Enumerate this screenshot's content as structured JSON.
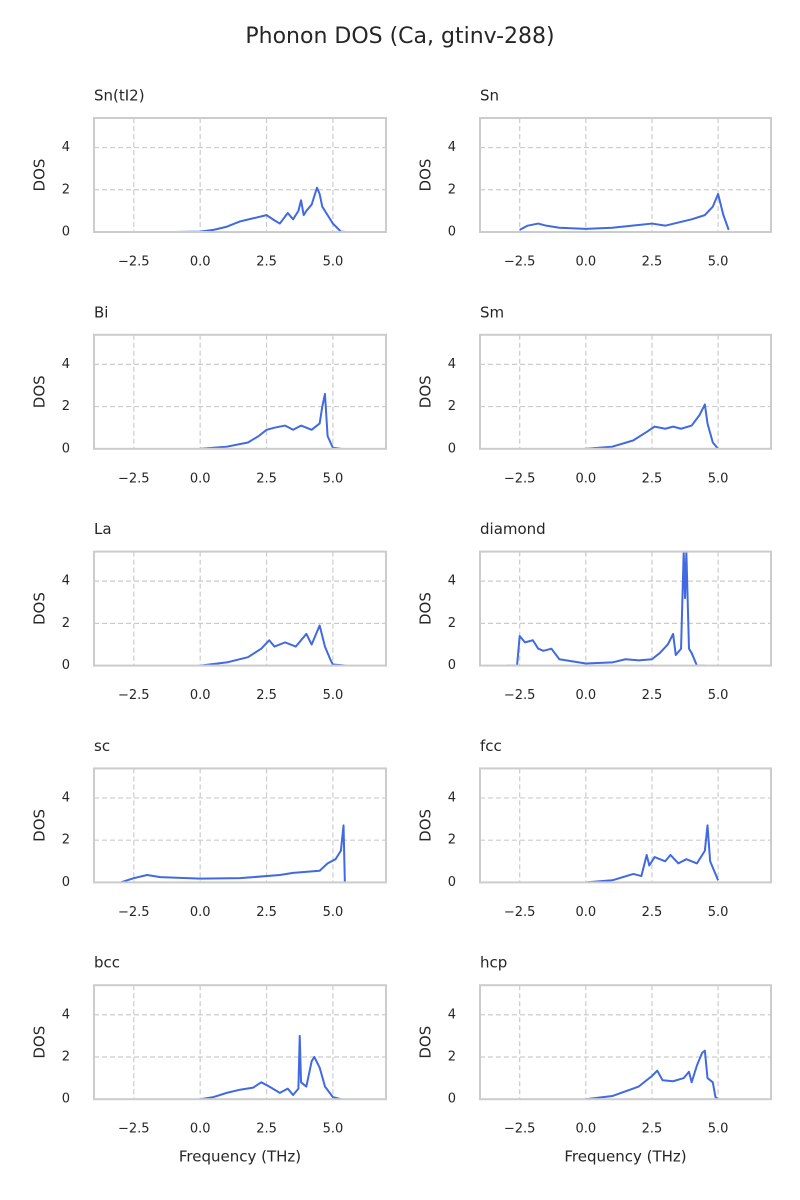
{
  "title": "Phonon DOS (Ca, gtinv-288)",
  "chart_data": [
    {
      "type": "line",
      "title": "Sn(tI2)",
      "ylabel": "DOS",
      "color": "#4169e1",
      "grid": true,
      "xlim": [
        -4.0,
        7.0
      ],
      "ylim": [
        0,
        5.4
      ],
      "xticks": [
        {
          "value": -2.5,
          "label": "−2.5"
        },
        {
          "value": 0,
          "label": "0.0"
        },
        2.5,
        {
          "value": 5,
          "label": "5.0"
        }
      ],
      "yticks": [
        0,
        2,
        4
      ],
      "x": [
        -1,
        0,
        0.5,
        1,
        1.5,
        2,
        2.5,
        2.8,
        3.0,
        3.3,
        3.5,
        3.7,
        3.8,
        3.9,
        4.0,
        4.2,
        4.4,
        4.5,
        4.6,
        4.8,
        5.0,
        5.3,
        5.5
      ],
      "values": [
        0,
        0.02,
        0.1,
        0.25,
        0.5,
        0.65,
        0.8,
        0.55,
        0.4,
        0.9,
        0.6,
        1.0,
        1.5,
        0.8,
        1.0,
        1.3,
        2.1,
        1.8,
        1.2,
        0.8,
        0.4,
        0.02,
        0
      ]
    },
    {
      "type": "line",
      "title": "Sn",
      "ylabel": "DOS",
      "color": "#4169e1",
      "grid": true,
      "xlim": [
        -4.0,
        7.0
      ],
      "ylim": [
        0,
        5.4
      ],
      "xticks": [
        {
          "value": -2.5,
          "label": "−2.5"
        },
        {
          "value": 0,
          "label": "0.0"
        },
        2.5,
        {
          "value": 5,
          "label": "5.0"
        }
      ],
      "yticks": [
        0,
        2,
        4
      ],
      "x": [
        -2.5,
        -2.2,
        -1.8,
        -1.5,
        -1,
        0,
        1,
        2.5,
        3,
        4,
        4.5,
        4.8,
        5.0,
        5.2,
        5.4
      ],
      "values": [
        0.1,
        0.3,
        0.4,
        0.3,
        0.2,
        0.15,
        0.2,
        0.4,
        0.3,
        0.6,
        0.8,
        1.2,
        1.8,
        0.8,
        0.1
      ]
    },
    {
      "type": "line",
      "title": "Bi",
      "ylabel": "DOS",
      "color": "#4169e1",
      "grid": true,
      "xlim": [
        -4.0,
        7.0
      ],
      "ylim": [
        0,
        5.4
      ],
      "xticks": [
        {
          "value": -2.5,
          "label": "−2.5"
        },
        {
          "value": 0,
          "label": "0.0"
        },
        2.5,
        {
          "value": 5,
          "label": "5.0"
        }
      ],
      "yticks": [
        0,
        2,
        4
      ],
      "x": [
        0,
        1,
        1.8,
        2.2,
        2.5,
        2.8,
        3.2,
        3.5,
        3.8,
        4.2,
        4.5,
        4.6,
        4.7,
        4.8,
        5,
        5.3
      ],
      "values": [
        0,
        0.1,
        0.3,
        0.6,
        0.9,
        1.0,
        1.1,
        0.9,
        1.1,
        0.9,
        1.2,
        2.0,
        2.6,
        0.6,
        0.05,
        0
      ]
    },
    {
      "type": "line",
      "title": "Sm",
      "ylabel": "DOS",
      "color": "#4169e1",
      "grid": true,
      "xlim": [
        -4.0,
        7.0
      ],
      "ylim": [
        0,
        5.4
      ],
      "xticks": [
        {
          "value": -2.5,
          "label": "−2.5"
        },
        {
          "value": 0,
          "label": "0.0"
        },
        2.5,
        {
          "value": 5,
          "label": "5.0"
        }
      ],
      "yticks": [
        0,
        2,
        4
      ],
      "x": [
        0,
        1,
        1.8,
        2.3,
        2.6,
        3.0,
        3.3,
        3.6,
        4.0,
        4.3,
        4.5,
        4.6,
        4.8,
        5
      ],
      "values": [
        0,
        0.1,
        0.4,
        0.8,
        1.05,
        0.95,
        1.05,
        0.95,
        1.1,
        1.6,
        2.1,
        1.2,
        0.3,
        0
      ]
    },
    {
      "type": "line",
      "title": "La",
      "ylabel": "DOS",
      "color": "#4169e1",
      "grid": true,
      "xlim": [
        -4.0,
        7.0
      ],
      "ylim": [
        0,
        5.4
      ],
      "xticks": [
        {
          "value": -2.5,
          "label": "−2.5"
        },
        {
          "value": 0,
          "label": "0.0"
        },
        2.5,
        {
          "value": 5,
          "label": "5.0"
        }
      ],
      "yticks": [
        0,
        2,
        4
      ],
      "x": [
        0,
        1,
        1.8,
        2.3,
        2.6,
        2.8,
        3.2,
        3.6,
        4.0,
        4.2,
        4.5,
        4.7,
        4.9,
        5.0,
        5.5
      ],
      "values": [
        0,
        0.15,
        0.4,
        0.8,
        1.2,
        0.9,
        1.1,
        0.9,
        1.5,
        1.0,
        1.9,
        0.9,
        0.3,
        0.05,
        0
      ]
    },
    {
      "type": "line",
      "title": "diamond",
      "ylabel": "DOS",
      "color": "#4169e1",
      "grid": true,
      "xlim": [
        -4.0,
        7.0
      ],
      "ylim": [
        0,
        5.4
      ],
      "xticks": [
        {
          "value": -2.5,
          "label": "−2.5"
        },
        {
          "value": 0,
          "label": "0.0"
        },
        2.5,
        {
          "value": 5,
          "label": "5.0"
        }
      ],
      "yticks": [
        0,
        2,
        4
      ],
      "x": [
        -3,
        -2.6,
        -2.5,
        -2.3,
        -2,
        -1.8,
        -1.6,
        -1.3,
        -1,
        -0.5,
        0,
        1,
        1.5,
        2,
        2.5,
        2.8,
        3.1,
        3.3,
        3.4,
        3.6,
        3.7,
        3.75,
        3.8,
        3.9,
        4.0,
        4.2,
        4.5
      ],
      "values": [
        0,
        0,
        1.4,
        1.1,
        1.2,
        0.8,
        0.7,
        0.8,
        0.3,
        0.2,
        0.1,
        0.15,
        0.3,
        0.25,
        0.3,
        0.6,
        1.0,
        1.5,
        0.5,
        0.8,
        5.4,
        3.2,
        5.4,
        0.8,
        0.6,
        0,
        0
      ]
    },
    {
      "type": "line",
      "title": "sc",
      "ylabel": "DOS",
      "color": "#4169e1",
      "grid": true,
      "xlim": [
        -4.0,
        7.0
      ],
      "ylim": [
        0,
        5.4
      ],
      "xticks": [
        {
          "value": -2.5,
          "label": "−2.5"
        },
        {
          "value": 0,
          "label": "0.0"
        },
        2.5,
        {
          "value": 5,
          "label": "5.0"
        }
      ],
      "yticks": [
        0,
        2,
        4
      ],
      "x": [
        -3,
        -2.5,
        -2,
        -1.5,
        0,
        1.5,
        2,
        3,
        3.5,
        4.5,
        4.8,
        5.1,
        5.3,
        5.4,
        5.45
      ],
      "values": [
        0,
        0.2,
        0.35,
        0.25,
        0.18,
        0.2,
        0.25,
        0.35,
        0.45,
        0.55,
        0.9,
        1.1,
        1.5,
        2.7,
        0
      ]
    },
    {
      "type": "line",
      "title": "fcc",
      "ylabel": "DOS",
      "color": "#4169e1",
      "grid": true,
      "xlim": [
        -4.0,
        7.0
      ],
      "ylim": [
        0,
        5.4
      ],
      "xticks": [
        {
          "value": -2.5,
          "label": "−2.5"
        },
        {
          "value": 0,
          "label": "0.0"
        },
        2.5,
        {
          "value": 5,
          "label": "5.0"
        }
      ],
      "yticks": [
        0,
        2,
        4
      ],
      "x": [
        0,
        1,
        1.8,
        2.1,
        2.3,
        2.4,
        2.6,
        3.0,
        3.2,
        3.5,
        3.8,
        4.2,
        4.5,
        4.6,
        4.7,
        5.0
      ],
      "values": [
        0,
        0.1,
        0.4,
        0.3,
        1.3,
        0.8,
        1.2,
        1.0,
        1.3,
        0.9,
        1.1,
        0.9,
        1.5,
        2.7,
        1.0,
        0.1
      ]
    },
    {
      "type": "line",
      "title": "bcc",
      "ylabel": "DOS",
      "xlabel": "Frequency (THz)",
      "color": "#4169e1",
      "grid": true,
      "xlim": [
        -4.0,
        7.0
      ],
      "ylim": [
        0,
        5.4
      ],
      "xticks": [
        {
          "value": -2.5,
          "label": "−2.5"
        },
        {
          "value": 0,
          "label": "0.0"
        },
        2.5,
        {
          "value": 5,
          "label": "5.0"
        }
      ],
      "yticks": [
        0,
        2,
        4
      ],
      "x": [
        0,
        0.5,
        1,
        1.5,
        2,
        2.3,
        2.6,
        3.0,
        3.3,
        3.5,
        3.7,
        3.75,
        3.8,
        4.0,
        4.2,
        4.3,
        4.5,
        4.7,
        5.0,
        5.3
      ],
      "values": [
        0,
        0.1,
        0.3,
        0.45,
        0.55,
        0.8,
        0.6,
        0.3,
        0.5,
        0.2,
        0.5,
        3.0,
        0.8,
        0.6,
        1.8,
        2.0,
        1.5,
        0.6,
        0.1,
        0
      ]
    },
    {
      "type": "line",
      "title": "hcp",
      "ylabel": "DOS",
      "xlabel": "Frequency (THz)",
      "color": "#4169e1",
      "grid": true,
      "xlim": [
        -4.0,
        7.0
      ],
      "ylim": [
        0,
        5.4
      ],
      "xticks": [
        {
          "value": -2.5,
          "label": "−2.5"
        },
        {
          "value": 0,
          "label": "0.0"
        },
        2.5,
        {
          "value": 5,
          "label": "5.0"
        }
      ],
      "yticks": [
        0,
        2,
        4
      ],
      "x": [
        0,
        1,
        2,
        2.5,
        2.7,
        2.9,
        3.3,
        3.7,
        3.9,
        4.0,
        4.2,
        4.4,
        4.5,
        4.6,
        4.8,
        4.9,
        5.0
      ],
      "values": [
        0,
        0.15,
        0.6,
        1.1,
        1.35,
        0.9,
        0.85,
        1.0,
        1.3,
        0.8,
        1.6,
        2.2,
        2.3,
        1.0,
        0.8,
        0.1,
        0
      ]
    }
  ]
}
